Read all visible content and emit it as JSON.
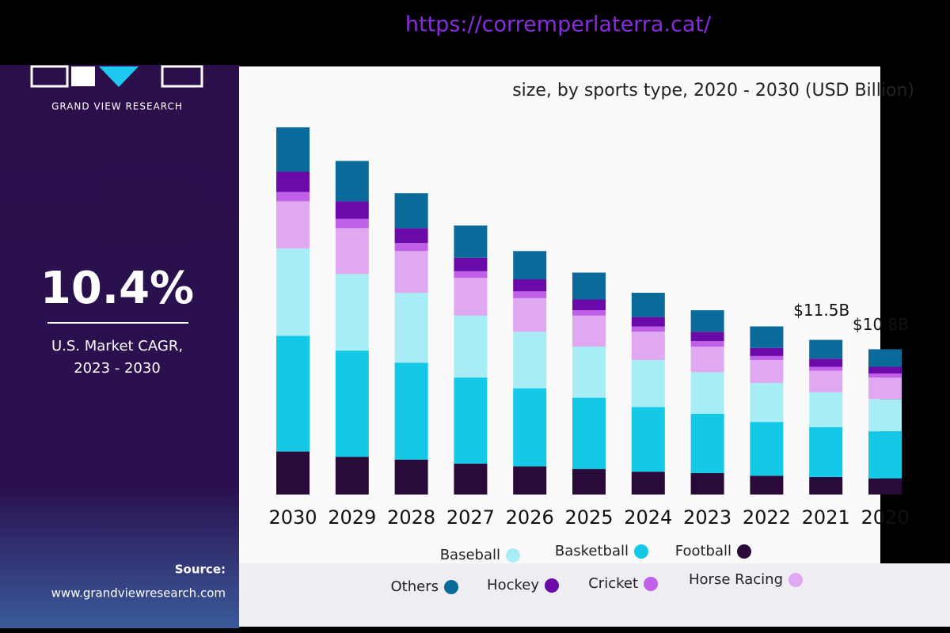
{
  "browser": {
    "url": "https://corremperlaterra.cat/"
  },
  "sidebar": {
    "brand": "GRAND VIEW RESEARCH",
    "cagr": "10.4%",
    "cagr_label": "U.S. Market CAGR,",
    "cagr_period": "2023 - 2030",
    "source_label": "Source:",
    "source_url": "www.grandviewresearch.com"
  },
  "chart_data": {
    "type": "stacked_bar",
    "subtitle": "size, by sports type, 2020 - 2030 (USD Billion)",
    "categories": [
      "2020",
      "2021",
      "2022",
      "2023",
      "2024",
      "2025",
      "2026",
      "2027",
      "2028",
      "2029",
      "2030"
    ],
    "x_reversed": true,
    "series": [
      {
        "name": "Football",
        "color": "#2a0a3a",
        "values": [
          1.2,
          1.3,
          1.4,
          1.6,
          1.7,
          1.9,
          2.1,
          2.3,
          2.6,
          2.8,
          3.2
        ]
      },
      {
        "name": "Basketball",
        "color": "#14c8e8",
        "values": [
          3.5,
          3.7,
          4.0,
          4.4,
          4.8,
          5.3,
          5.8,
          6.4,
          7.2,
          7.9,
          8.6
        ]
      },
      {
        "name": "Baseball",
        "color": "#a8ecf5",
        "values": [
          2.4,
          2.6,
          2.9,
          3.1,
          3.5,
          3.8,
          4.2,
          4.6,
          5.2,
          5.7,
          6.5
        ]
      },
      {
        "name": "Horse Racing",
        "color": "#e0a8f0",
        "values": [
          1.6,
          1.6,
          1.7,
          1.9,
          2.1,
          2.3,
          2.5,
          2.8,
          3.1,
          3.4,
          3.5
        ]
      },
      {
        "name": "Cricket",
        "color": "#c060e8",
        "values": [
          0.3,
          0.3,
          0.3,
          0.4,
          0.4,
          0.4,
          0.5,
          0.5,
          0.6,
          0.7,
          0.7
        ]
      },
      {
        "name": "Hockey",
        "color": "#6a0aa8",
        "values": [
          0.5,
          0.6,
          0.6,
          0.7,
          0.7,
          0.8,
          0.9,
          1.0,
          1.1,
          1.3,
          1.5
        ]
      },
      {
        "name": "Others",
        "color": "#0a6a9a",
        "values": [
          1.3,
          1.4,
          1.6,
          1.6,
          1.8,
          2.0,
          2.1,
          2.4,
          2.6,
          3.0,
          3.3
        ]
      }
    ],
    "annotations": [
      {
        "category": "2020",
        "value": 10.8,
        "label": "$10.8B"
      },
      {
        "category": "2021",
        "value": 11.5,
        "label": "$11.5B"
      }
    ],
    "legend": "bottom"
  }
}
